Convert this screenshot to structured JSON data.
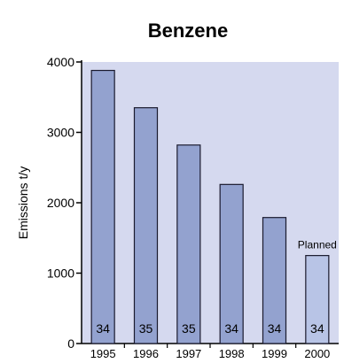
{
  "chart_data": {
    "type": "bar",
    "title": "Benzene",
    "xlabel": "",
    "ylabel": "Emissions t/y",
    "categories": [
      "1995",
      "1996",
      "1997",
      "1998",
      "1999",
      "2000"
    ],
    "values": [
      3880,
      3350,
      2820,
      2260,
      1790,
      1250
    ],
    "bar_labels": [
      "34",
      "35",
      "35",
      "34",
      "34",
      "34"
    ],
    "annotations": [
      {
        "category": "2000",
        "text": "Planned"
      }
    ],
    "ylim": [
      0,
      4000
    ],
    "yticks": [
      0,
      1000,
      2000,
      3000,
      4000
    ],
    "grid": false,
    "colors": {
      "plot_background": "#d5d9ef",
      "bar": "#93a2cf",
      "bar_planned": "#b8c4e6",
      "bar_stroke": "#1a1a2e"
    }
  }
}
